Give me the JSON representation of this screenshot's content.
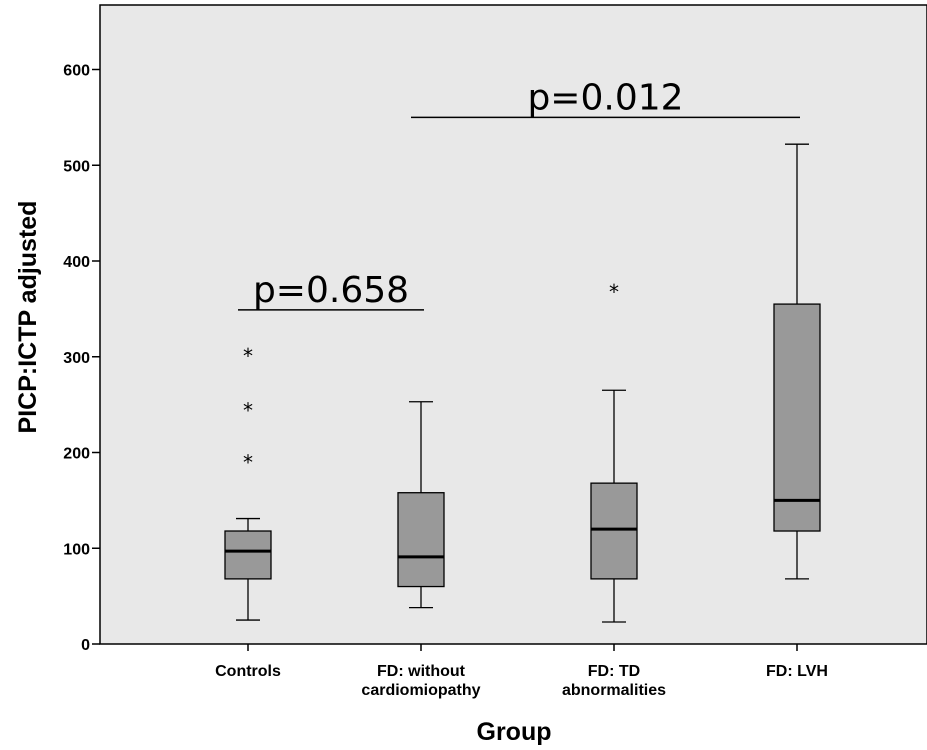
{
  "chart_data": {
    "type": "boxplot",
    "xlabel": "Group",
    "ylabel": "PICP:ICTP adjusted",
    "ylim": [
      0,
      660
    ],
    "yticks": [
      0,
      100,
      200,
      300,
      400,
      500,
      600
    ],
    "grid": false,
    "background": "#e8e8e8",
    "box_color": "#999999",
    "groups": [
      {
        "label_lines": [
          "Controls"
        ],
        "whisker_low": 25,
        "q1": 68,
        "median": 97,
        "q3": 118,
        "whisker_high": 131,
        "outliers": [
          195,
          249,
          306
        ]
      },
      {
        "label_lines": [
          "FD: without",
          "cardiomiopathy"
        ],
        "whisker_low": 38,
        "q1": 60,
        "median": 91,
        "q3": 158,
        "whisker_high": 253,
        "outliers": []
      },
      {
        "label_lines": [
          "FD: TD",
          "abnormalities"
        ],
        "whisker_low": 23,
        "q1": 68,
        "median": 120,
        "q3": 168,
        "whisker_high": 265,
        "outliers": [
          373
        ]
      },
      {
        "label_lines": [
          "FD: LVH"
        ],
        "whisker_low": 68,
        "q1": 118,
        "median": 150,
        "q3": 355,
        "whisker_high": 522,
        "outliers": []
      }
    ],
    "annotations": [
      {
        "text": "p=0.658",
        "from_group": 0,
        "to_group": 1,
        "y": 349
      },
      {
        "text": "p=0.012",
        "from_group": 1,
        "to_group": 3,
        "y": 550
      }
    ]
  }
}
